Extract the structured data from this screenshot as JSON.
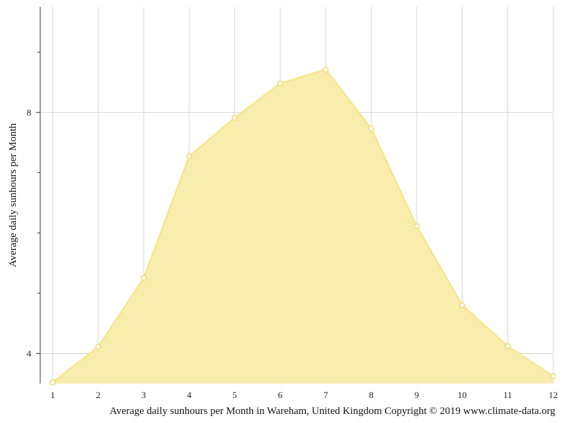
{
  "chart_data": {
    "type": "area",
    "title": "",
    "xlabel": "Average daily sunhours per Month in Wareham, United Kingdom Copyright © 2019 www.climate-data.org",
    "ylabel": "Average daily sunhours per Month",
    "x": [
      1,
      2,
      3,
      4,
      5,
      6,
      7,
      8,
      9,
      10,
      11,
      12
    ],
    "x_tick_labels": [
      "1",
      "2",
      "3",
      "4",
      "5",
      "6",
      "7",
      "8",
      "9",
      "10",
      "11",
      "12"
    ],
    "y_tick_labels": [
      "4",
      "8"
    ],
    "y_ticks": [
      4,
      8
    ],
    "y_minor_ticks": [
      5,
      6,
      7,
      9
    ],
    "series": [
      {
        "values": [
          3.52,
          4.11,
          5.25,
          7.27,
          7.91,
          8.48,
          8.71,
          7.73,
          6.11,
          4.8,
          4.12,
          3.62
        ]
      }
    ],
    "xlim": [
      1,
      12
    ],
    "ylim": [
      3.5,
      9.75
    ],
    "grid": true,
    "colors": {
      "fill": "#f9ecaa",
      "line": "#f6e58c",
      "marker_stroke": "#f0d970",
      "grid": "#d4d4d4",
      "axis": "#333333"
    }
  }
}
